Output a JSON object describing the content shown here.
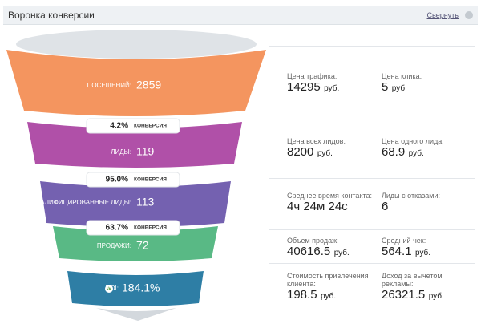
{
  "header": {
    "title": "Воронка конверсии",
    "action": "Свернуть"
  },
  "stages": [
    {
      "label": "ПОСЕЩЕНИЙ:",
      "value": "2859"
    },
    {
      "label": "ЛИДЫ:",
      "value": "119"
    },
    {
      "label": "КВАЛИФИЦИРОВАННЫЕ ЛИДЫ:",
      "value": "113"
    },
    {
      "label": "ПРОДАЖИ:",
      "value": "72"
    },
    {
      "label": "ROI:",
      "value": "184.1%"
    }
  ],
  "conversions": [
    {
      "value": "4.2%",
      "label": "КОНВЕРСИЯ"
    },
    {
      "value": "95.0%",
      "label": "КОНВЕРСИЯ"
    },
    {
      "value": "63.7%",
      "label": "КОНВЕРСИЯ"
    }
  ],
  "metrics": [
    [
      {
        "label": "Цена трафика:",
        "value": "14295",
        "unit": "руб."
      },
      {
        "label": "Цена клика:",
        "value": "5",
        "unit": "руб."
      }
    ],
    [
      {
        "label": "Цена всех лидов:",
        "value": "8200",
        "unit": "руб."
      },
      {
        "label": "Цена одного лида:",
        "value": "68.9",
        "unit": "руб."
      }
    ],
    [
      {
        "label": "Среднее время контакта:",
        "value": "4ч 24м 24с"
      },
      {
        "label": "Лиды с отказами:",
        "value": "6"
      }
    ],
    [
      {
        "label": "Объем продаж:",
        "value": "40616.5",
        "unit": "руб."
      },
      {
        "label": "Средний чек:",
        "value": "564.1",
        "unit": "руб."
      }
    ],
    [
      {
        "label": "Стоимость привлечения клиента:",
        "value": "198.5",
        "unit": "руб."
      },
      {
        "label": "Доход за вычетом рекламы:",
        "value": "26321.5",
        "unit": "руб."
      }
    ]
  ]
}
